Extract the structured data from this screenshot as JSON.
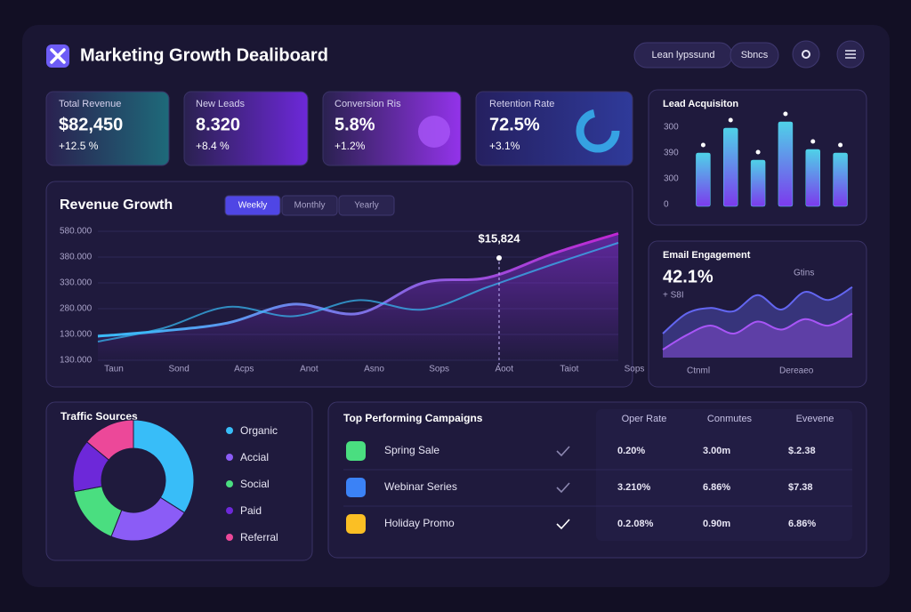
{
  "header": {
    "title": "Marketing Growth Dealiboard",
    "buttons": [
      "Lean lypssund",
      "Sbncs"
    ]
  },
  "kpis": [
    {
      "label": "Total Revenue",
      "value": "$82,450",
      "change": "+12.5 %"
    },
    {
      "label": "New Leads",
      "value": "8.320",
      "change": "+8.4 %"
    },
    {
      "label": "Conversion Ris",
      "value": "5.8%",
      "change": "+1.2%"
    },
    {
      "label": "Retention Rate",
      "value": "72.5%",
      "change": "+3.1%"
    }
  ],
  "revenue": {
    "title": "Revenue Growth",
    "tabs": [
      "Weekly",
      "Monthly",
      "Yearly"
    ],
    "annotation": "$15,824",
    "y_labels": [
      "580.000",
      "380.000",
      "330.000",
      "280.000",
      "130.000",
      "130.000"
    ],
    "chart_data": {
      "type": "line",
      "categories": [
        "Taun",
        "Sond",
        "Acps",
        "Anot",
        "Asno",
        "Sops",
        "Aoot",
        "Taiot",
        "Sops"
      ],
      "series": [
        {
          "color": "#a855f7",
          "values": [
            18,
            22,
            28,
            42,
            35,
            58,
            62,
            80,
            95
          ]
        },
        {
          "color": "#38bdf8",
          "values": [
            14,
            24,
            40,
            33,
            45,
            38,
            55,
            72,
            88
          ]
        }
      ],
      "ylim": [
        0,
        100
      ]
    }
  },
  "leads": {
    "title": "Lead Acquisiton",
    "y_labels": [
      "300",
      "390",
      "300",
      "0"
    ],
    "chart_data": {
      "type": "bar",
      "values": [
        60,
        88,
        52,
        95,
        64,
        60
      ],
      "color": "#4fd1e8",
      "ylim": [
        0,
        100
      ]
    }
  },
  "email": {
    "title": "Email Engagement",
    "value": "42.1%",
    "change": "+ S8I",
    "note": "Gtins",
    "x_labels": [
      "Ctnml",
      "Dereaeo"
    ],
    "chart_data": {
      "type": "area",
      "series": [
        {
          "color": "#6366f1",
          "values": [
            30,
            55,
            62,
            58,
            78,
            60,
            82,
            72,
            88
          ]
        },
        {
          "color": "#a855f7",
          "values": [
            10,
            28,
            40,
            30,
            45,
            35,
            48,
            40,
            55
          ]
        }
      ],
      "ylim": [
        0,
        100
      ]
    }
  },
  "traffic": {
    "title": "Traffic Sources",
    "chart_data": {
      "type": "pie",
      "categories": [
        "Organic",
        "Accial",
        "Social",
        "Paid",
        "Referral"
      ],
      "values": [
        34,
        22,
        16,
        14,
        14
      ],
      "colors": [
        "#38bdf8",
        "#8b5cf6",
        "#4ade80",
        "#6d28d9",
        "#ec4899"
      ]
    }
  },
  "campaigns": {
    "title": "Top Performing Campaigns",
    "columns": [
      "Oper Rate",
      "Conmutes",
      "Evevene"
    ],
    "rows": [
      {
        "name": "Spring Sale",
        "icon_color": "#4ade80",
        "cells": [
          "0.20%",
          "3.00m",
          "$.2.38"
        ]
      },
      {
        "name": "Webinar Series",
        "icon_color": "#3b82f6",
        "cells": [
          "3.210%",
          "6.86%",
          "$7.38"
        ]
      },
      {
        "name": "Holiday Promo",
        "icon_color": "#fbbf24",
        "cells": [
          "0.2.08%",
          "0.90m",
          "6.86%"
        ]
      }
    ]
  }
}
